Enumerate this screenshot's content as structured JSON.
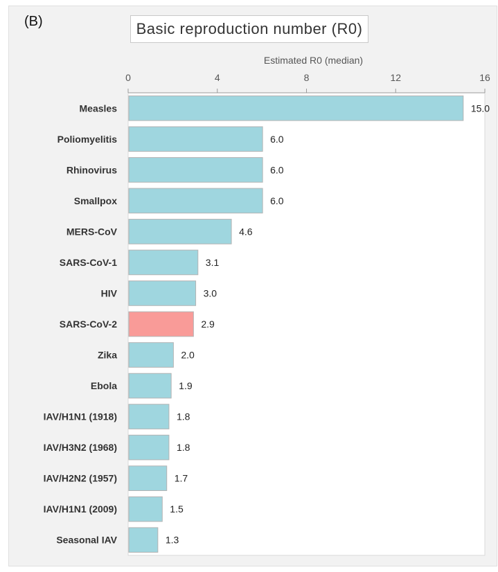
{
  "panel_label": "(B)",
  "chart_data": {
    "type": "bar",
    "orientation": "horizontal",
    "title": "Basic reproduction number (R0)",
    "xlabel": "Estimated R0 (median)",
    "ylabel": "",
    "xlim": [
      0,
      16
    ],
    "xticks": [
      0,
      4,
      8,
      12,
      16
    ],
    "axis_position": "top",
    "categories": [
      "Measles",
      "Poliomyelitis",
      "Rhinovirus",
      "Smallpox",
      "MERS-CoV",
      "SARS-CoV-1",
      "HIV",
      "SARS-CoV-2",
      "Zika",
      "Ebola",
      "IAV/H1N1 (1918)",
      "IAV/H3N2 (1968)",
      "IAV/H2N2 (1957)",
      "IAV/H1N1 (2009)",
      "Seasonal IAV"
    ],
    "values": [
      15.0,
      6.0,
      6.0,
      6.0,
      4.6,
      3.1,
      3.0,
      2.9,
      2.0,
      1.9,
      1.8,
      1.8,
      1.7,
      1.5,
      1.3
    ],
    "value_labels": [
      "15.0",
      "6.0",
      "6.0",
      "6.0",
      "4.6",
      "3.1",
      "3.0",
      "2.9",
      "2.0",
      "1.9",
      "1.8",
      "1.8",
      "1.7",
      "1.5",
      "1.3"
    ],
    "highlight_category": "SARS-CoV-2",
    "colors": {
      "bar": "#9fd6df",
      "highlight": "#f99b98",
      "bar_border": "#b3b3b3"
    },
    "grid": false
  }
}
